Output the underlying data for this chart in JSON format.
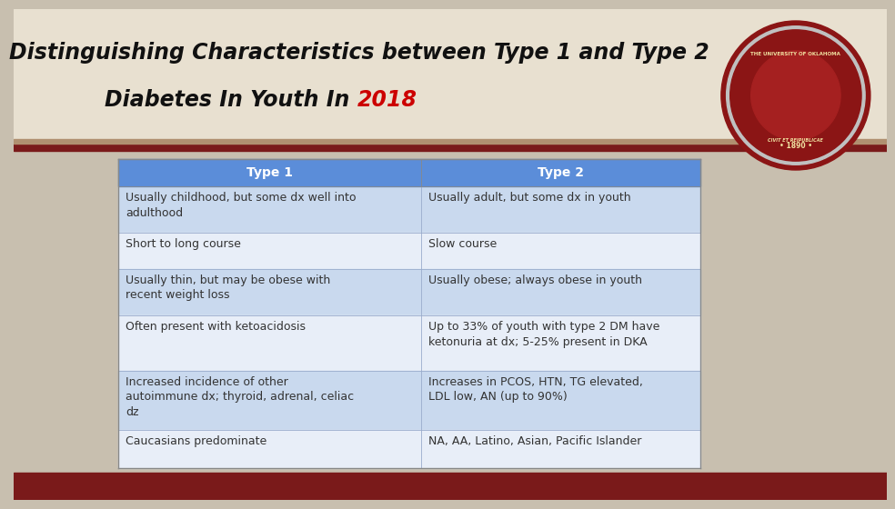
{
  "title_line1": "Distinguishing Characteristics between Type 1 and Type 2",
  "title_line2_prefix": "Diabetes In Youth In ",
  "title_year": "2018",
  "title_color": "#111111",
  "title_year_color": "#cc0000",
  "bg_main": "#c8bfaf",
  "bg_title_area": "#e8e0d0",
  "header_bg_color": "#5b8dd9",
  "header_text_color": "#ffffff",
  "row_odd_color": "#c9d9ee",
  "row_even_color": "#e8eef8",
  "bottom_bar_color": "#7a1a1a",
  "divider_color": "#7a1a1a",
  "divider_thin_color": "#b09070",
  "table_border_color": "#888888",
  "text_color": "#333333",
  "headers": [
    "Type 1",
    "Type 2"
  ],
  "rows": [
    [
      "Usually childhood, but some dx well into\nadulthood",
      "Usually adult, but some dx in youth"
    ],
    [
      "Short to long course",
      "Slow course"
    ],
    [
      "Usually thin, but may be obese with\nrecent weight loss",
      "Usually obese; always obese in youth"
    ],
    [
      "Often present with ketoacidosis",
      "Up to 33% of youth with type 2 DM have\nketonuria at dx; 5-25% present in DKA"
    ],
    [
      "Increased incidence of other\nautoimmune dx; thyroid, adrenal, celiac\ndz",
      "Increases in PCOS, HTN, TG elevated,\nLDL low, AN (up to 90%)"
    ],
    [
      "Caucasians predominate",
      "NA, AA, Latino, Asian, Pacific Islander"
    ]
  ]
}
